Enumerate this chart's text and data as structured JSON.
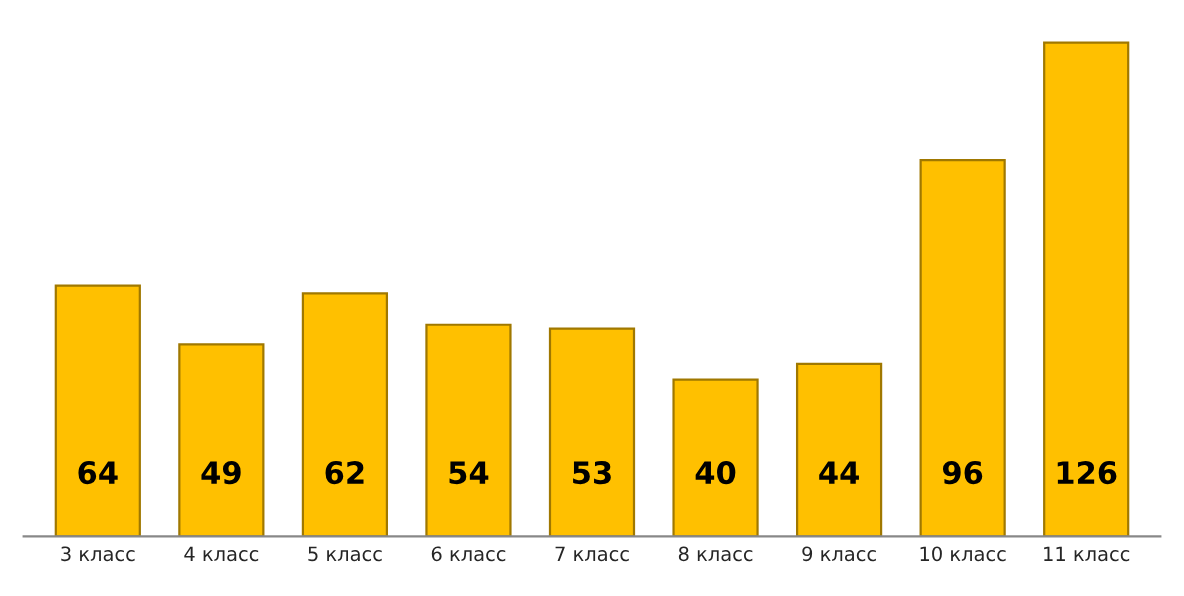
{
  "chart_data": {
    "type": "bar",
    "categories": [
      "3 класс",
      "4 класс",
      "5 класс",
      "6 класс",
      "7 класс",
      "8 класс",
      "9 класс",
      "10 класс",
      "11 класс"
    ],
    "values": [
      64,
      49,
      62,
      54,
      53,
      40,
      44,
      96,
      126
    ],
    "color": "#ffc000",
    "data_labels": true,
    "grid": false,
    "legend": false
  }
}
